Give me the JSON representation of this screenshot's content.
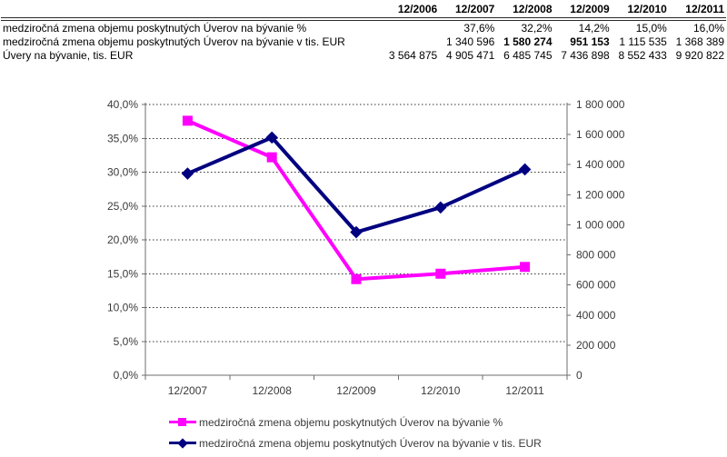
{
  "table": {
    "columns": [
      "12/2006",
      "12/2007",
      "12/2008",
      "12/2009",
      "12/2010",
      "12/2011"
    ],
    "rows": [
      {
        "label": "medziročná zmena objemu poskytnutých Úverov na bývanie %",
        "values": [
          "",
          "37,6%",
          "32,2%",
          "14,2%",
          "15,0%",
          "16,0%"
        ]
      },
      {
        "label": "medziročná zmena objemu poskytnutých Úverov na bývanie v tis. EUR",
        "values": [
          "",
          "1 340 596",
          "1 580 274",
          "951 153",
          "1 115 535",
          "1 368 389"
        ],
        "bold_value_indexes": [
          2,
          3
        ]
      },
      {
        "label": "Úvery na bývanie, tis. EUR",
        "values": [
          "3 564 875",
          "4 905 471",
          "6 485 745",
          "7 436 898",
          "8 552 433",
          "9 920 822"
        ]
      }
    ]
  },
  "chart_data": {
    "type": "line",
    "categories": [
      "12/2007",
      "12/2008",
      "12/2009",
      "12/2010",
      "12/2011"
    ],
    "series": [
      {
        "name": "medziročná zmena objemu poskytnutých Úverov na bývanie %",
        "axis": "left",
        "color": "#FF00FF",
        "marker": "square",
        "values": [
          37.6,
          32.2,
          14.2,
          15.0,
          16.0
        ]
      },
      {
        "name": "medziročná zmena objemu poskytnutých Úverov na bývanie v tis. EUR",
        "axis": "right",
        "color": "#000080",
        "marker": "diamond",
        "values": [
          1340596,
          1580274,
          951153,
          1115535,
          1368389
        ]
      }
    ],
    "left_axis": {
      "min": 0,
      "max": 40,
      "step": 5,
      "labels": [
        "0,0%",
        "5,0%",
        "10,0%",
        "15,0%",
        "20,0%",
        "25,0%",
        "30,0%",
        "35,0%",
        "40,0%"
      ]
    },
    "right_axis": {
      "min": 0,
      "max": 1800000,
      "step": 200000,
      "labels": [
        "0",
        "200 000",
        "400 000",
        "600 000",
        "800 000",
        "1 000 000",
        "1 200 000",
        "1 400 000",
        "1 600 000",
        "1 800 000"
      ]
    },
    "grid": "horizontal-dotted",
    "legend_position": "bottom-left",
    "axis_color": "#6e6e6e",
    "gridline_color": "#333333",
    "label_color": "#3a3a3a"
  }
}
